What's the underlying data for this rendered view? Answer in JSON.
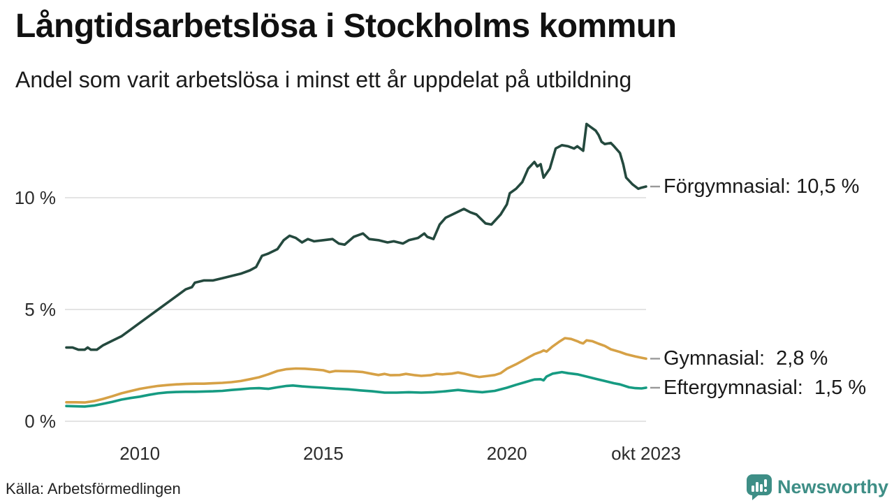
{
  "header": {
    "title": "Långtidsarbetslösa i Stockholms kommun",
    "subtitle": "Andel som varit arbetslösa i minst ett år uppdelat på utbildning"
  },
  "footer": {
    "source": "Källa: Arbetsförmedlingen",
    "brand": "Newsworthy"
  },
  "colors": {
    "brand_teal": "#3e8e86",
    "title_text": "#111111",
    "axis_text": "#2b2b2b"
  },
  "chart_data": {
    "type": "line",
    "title": "Långtidsarbetslösa i Stockholms kommun",
    "subtitle": "Andel som varit arbetslösa i minst ett år uppdelat på utbildning",
    "x_unit": "decimal year (monthly data, jan 2008 – okt 2023)",
    "x_range": [
      2008.0,
      2023.7917
    ],
    "ylim": [
      0,
      14
    ],
    "grid": "horizontal",
    "grid_color": "#e4e4e4",
    "connector_color": "#999999",
    "legend": "direct labels at line ends, right side",
    "yticks": [
      {
        "value": 0,
        "label": "0 %"
      },
      {
        "value": 5,
        "label": "5 %"
      },
      {
        "value": 10,
        "label": "10 %"
      }
    ],
    "xticks": [
      {
        "value": 2010,
        "label": "2010"
      },
      {
        "value": 2015,
        "label": "2015"
      },
      {
        "value": 2020,
        "label": "2020"
      },
      {
        "value": 2023.7917,
        "label": "okt 2023"
      }
    ],
    "series": [
      {
        "name": "Förgymnasial",
        "color": "#24493e",
        "end_value": 10.5,
        "end_label": "Förgymnasial: 10,5 %",
        "points": [
          [
            2008.0,
            3.3
          ],
          [
            2008.17,
            3.3
          ],
          [
            2008.33,
            3.2
          ],
          [
            2008.5,
            3.2
          ],
          [
            2008.58,
            3.3
          ],
          [
            2008.67,
            3.2
          ],
          [
            2008.83,
            3.2
          ],
          [
            2009.0,
            3.4
          ],
          [
            2009.25,
            3.6
          ],
          [
            2009.5,
            3.8
          ],
          [
            2009.75,
            4.1
          ],
          [
            2010.0,
            4.4
          ],
          [
            2010.25,
            4.7
          ],
          [
            2010.5,
            5.0
          ],
          [
            2010.75,
            5.3
          ],
          [
            2011.0,
            5.6
          ],
          [
            2011.25,
            5.9
          ],
          [
            2011.42,
            6.0
          ],
          [
            2011.5,
            6.2
          ],
          [
            2011.75,
            6.3
          ],
          [
            2012.0,
            6.3
          ],
          [
            2012.25,
            6.4
          ],
          [
            2012.5,
            6.5
          ],
          [
            2012.75,
            6.6
          ],
          [
            2013.0,
            6.75
          ],
          [
            2013.17,
            6.9
          ],
          [
            2013.33,
            7.4
          ],
          [
            2013.5,
            7.5
          ],
          [
            2013.75,
            7.7
          ],
          [
            2013.92,
            8.1
          ],
          [
            2014.08,
            8.3
          ],
          [
            2014.25,
            8.2
          ],
          [
            2014.42,
            8.0
          ],
          [
            2014.58,
            8.15
          ],
          [
            2014.75,
            8.05
          ],
          [
            2015.0,
            8.1
          ],
          [
            2015.25,
            8.15
          ],
          [
            2015.42,
            7.95
          ],
          [
            2015.58,
            7.9
          ],
          [
            2015.83,
            8.25
          ],
          [
            2016.08,
            8.4
          ],
          [
            2016.25,
            8.15
          ],
          [
            2016.5,
            8.1
          ],
          [
            2016.75,
            8.0
          ],
          [
            2016.92,
            8.05
          ],
          [
            2017.17,
            7.95
          ],
          [
            2017.33,
            8.1
          ],
          [
            2017.58,
            8.2
          ],
          [
            2017.75,
            8.4
          ],
          [
            2017.83,
            8.25
          ],
          [
            2018.0,
            8.15
          ],
          [
            2018.17,
            8.8
          ],
          [
            2018.33,
            9.1
          ],
          [
            2018.58,
            9.3
          ],
          [
            2018.83,
            9.5
          ],
          [
            2019.0,
            9.35
          ],
          [
            2019.17,
            9.25
          ],
          [
            2019.42,
            8.85
          ],
          [
            2019.58,
            8.8
          ],
          [
            2019.83,
            9.25
          ],
          [
            2020.0,
            9.7
          ],
          [
            2020.08,
            10.2
          ],
          [
            2020.25,
            10.4
          ],
          [
            2020.42,
            10.7
          ],
          [
            2020.58,
            11.3
          ],
          [
            2020.75,
            11.6
          ],
          [
            2020.83,
            11.4
          ],
          [
            2020.92,
            11.5
          ],
          [
            2021.0,
            10.9
          ],
          [
            2021.17,
            11.3
          ],
          [
            2021.33,
            12.2
          ],
          [
            2021.5,
            12.35
          ],
          [
            2021.67,
            12.3
          ],
          [
            2021.83,
            12.2
          ],
          [
            2021.92,
            12.3
          ],
          [
            2022.08,
            12.1
          ],
          [
            2022.17,
            13.3
          ],
          [
            2022.25,
            13.2
          ],
          [
            2022.42,
            13.0
          ],
          [
            2022.5,
            12.8
          ],
          [
            2022.58,
            12.5
          ],
          [
            2022.67,
            12.4
          ],
          [
            2022.83,
            12.45
          ],
          [
            2022.92,
            12.3
          ],
          [
            2023.08,
            12.0
          ],
          [
            2023.17,
            11.5
          ],
          [
            2023.25,
            10.9
          ],
          [
            2023.42,
            10.6
          ],
          [
            2023.5,
            10.5
          ],
          [
            2023.58,
            10.4
          ],
          [
            2023.67,
            10.45
          ],
          [
            2023.7917,
            10.5
          ]
        ]
      },
      {
        "name": "Gymnasial",
        "color": "#d6a146",
        "end_value": 2.8,
        "end_label": "Gymnasial:  2,8 %",
        "points": [
          [
            2008.0,
            0.85
          ],
          [
            2008.25,
            0.85
          ],
          [
            2008.5,
            0.84
          ],
          [
            2008.75,
            0.9
          ],
          [
            2009.0,
            1.0
          ],
          [
            2009.25,
            1.12
          ],
          [
            2009.5,
            1.25
          ],
          [
            2009.75,
            1.35
          ],
          [
            2010.0,
            1.45
          ],
          [
            2010.25,
            1.52
          ],
          [
            2010.5,
            1.58
          ],
          [
            2010.75,
            1.62
          ],
          [
            2011.0,
            1.65
          ],
          [
            2011.25,
            1.67
          ],
          [
            2011.5,
            1.68
          ],
          [
            2011.75,
            1.68
          ],
          [
            2012.0,
            1.7
          ],
          [
            2012.25,
            1.72
          ],
          [
            2012.5,
            1.75
          ],
          [
            2012.75,
            1.8
          ],
          [
            2013.0,
            1.88
          ],
          [
            2013.25,
            1.97
          ],
          [
            2013.5,
            2.1
          ],
          [
            2013.75,
            2.25
          ],
          [
            2014.0,
            2.33
          ],
          [
            2014.25,
            2.36
          ],
          [
            2014.5,
            2.35
          ],
          [
            2014.75,
            2.32
          ],
          [
            2015.0,
            2.28
          ],
          [
            2015.17,
            2.2
          ],
          [
            2015.33,
            2.25
          ],
          [
            2015.58,
            2.24
          ],
          [
            2015.83,
            2.23
          ],
          [
            2016.08,
            2.2
          ],
          [
            2016.33,
            2.12
          ],
          [
            2016.5,
            2.07
          ],
          [
            2016.67,
            2.12
          ],
          [
            2016.83,
            2.06
          ],
          [
            2017.08,
            2.07
          ],
          [
            2017.25,
            2.12
          ],
          [
            2017.5,
            2.06
          ],
          [
            2017.67,
            2.03
          ],
          [
            2017.92,
            2.06
          ],
          [
            2018.08,
            2.12
          ],
          [
            2018.25,
            2.1
          ],
          [
            2018.5,
            2.13
          ],
          [
            2018.67,
            2.18
          ],
          [
            2018.83,
            2.13
          ],
          [
            2019.08,
            2.03
          ],
          [
            2019.25,
            1.98
          ],
          [
            2019.5,
            2.03
          ],
          [
            2019.67,
            2.07
          ],
          [
            2019.83,
            2.15
          ],
          [
            2020.0,
            2.35
          ],
          [
            2020.25,
            2.55
          ],
          [
            2020.42,
            2.7
          ],
          [
            2020.58,
            2.85
          ],
          [
            2020.75,
            3.0
          ],
          [
            2020.83,
            3.05
          ],
          [
            2020.92,
            3.1
          ],
          [
            2021.0,
            3.17
          ],
          [
            2021.08,
            3.12
          ],
          [
            2021.25,
            3.35
          ],
          [
            2021.42,
            3.55
          ],
          [
            2021.58,
            3.72
          ],
          [
            2021.75,
            3.68
          ],
          [
            2021.92,
            3.58
          ],
          [
            2022.0,
            3.52
          ],
          [
            2022.08,
            3.48
          ],
          [
            2022.17,
            3.62
          ],
          [
            2022.33,
            3.58
          ],
          [
            2022.5,
            3.47
          ],
          [
            2022.67,
            3.37
          ],
          [
            2022.83,
            3.22
          ],
          [
            2023.08,
            3.1
          ],
          [
            2023.25,
            3.0
          ],
          [
            2023.5,
            2.9
          ],
          [
            2023.67,
            2.84
          ],
          [
            2023.7917,
            2.8
          ]
        ]
      },
      {
        "name": "Eftergymnasial",
        "color": "#169b82",
        "end_value": 1.5,
        "end_label": "Eftergymnasial:  1,5 %",
        "points": [
          [
            2008.0,
            0.68
          ],
          [
            2008.25,
            0.67
          ],
          [
            2008.5,
            0.66
          ],
          [
            2008.75,
            0.7
          ],
          [
            2009.0,
            0.78
          ],
          [
            2009.25,
            0.87
          ],
          [
            2009.5,
            0.97
          ],
          [
            2009.75,
            1.04
          ],
          [
            2010.0,
            1.1
          ],
          [
            2010.25,
            1.18
          ],
          [
            2010.5,
            1.25
          ],
          [
            2010.75,
            1.29
          ],
          [
            2011.0,
            1.31
          ],
          [
            2011.25,
            1.32
          ],
          [
            2011.5,
            1.32
          ],
          [
            2011.75,
            1.33
          ],
          [
            2012.0,
            1.34
          ],
          [
            2012.25,
            1.36
          ],
          [
            2012.5,
            1.4
          ],
          [
            2012.75,
            1.43
          ],
          [
            2013.0,
            1.47
          ],
          [
            2013.25,
            1.48
          ],
          [
            2013.5,
            1.45
          ],
          [
            2013.75,
            1.52
          ],
          [
            2014.0,
            1.58
          ],
          [
            2014.17,
            1.6
          ],
          [
            2014.42,
            1.56
          ],
          [
            2014.67,
            1.53
          ],
          [
            2015.0,
            1.5
          ],
          [
            2015.33,
            1.46
          ],
          [
            2015.67,
            1.43
          ],
          [
            2016.0,
            1.38
          ],
          [
            2016.33,
            1.34
          ],
          [
            2016.67,
            1.28
          ],
          [
            2017.0,
            1.28
          ],
          [
            2017.33,
            1.3
          ],
          [
            2017.67,
            1.28
          ],
          [
            2018.0,
            1.3
          ],
          [
            2018.33,
            1.34
          ],
          [
            2018.67,
            1.4
          ],
          [
            2019.0,
            1.34
          ],
          [
            2019.33,
            1.3
          ],
          [
            2019.67,
            1.36
          ],
          [
            2020.0,
            1.5
          ],
          [
            2020.25,
            1.63
          ],
          [
            2020.5,
            1.75
          ],
          [
            2020.75,
            1.87
          ],
          [
            2020.92,
            1.88
          ],
          [
            2021.0,
            1.83
          ],
          [
            2021.08,
            2.0
          ],
          [
            2021.25,
            2.13
          ],
          [
            2021.5,
            2.2
          ],
          [
            2021.67,
            2.15
          ],
          [
            2021.92,
            2.1
          ],
          [
            2022.17,
            2.0
          ],
          [
            2022.42,
            1.9
          ],
          [
            2022.67,
            1.8
          ],
          [
            2022.92,
            1.7
          ],
          [
            2023.08,
            1.65
          ],
          [
            2023.33,
            1.52
          ],
          [
            2023.5,
            1.48
          ],
          [
            2023.67,
            1.47
          ],
          [
            2023.7917,
            1.5
          ]
        ]
      }
    ]
  }
}
